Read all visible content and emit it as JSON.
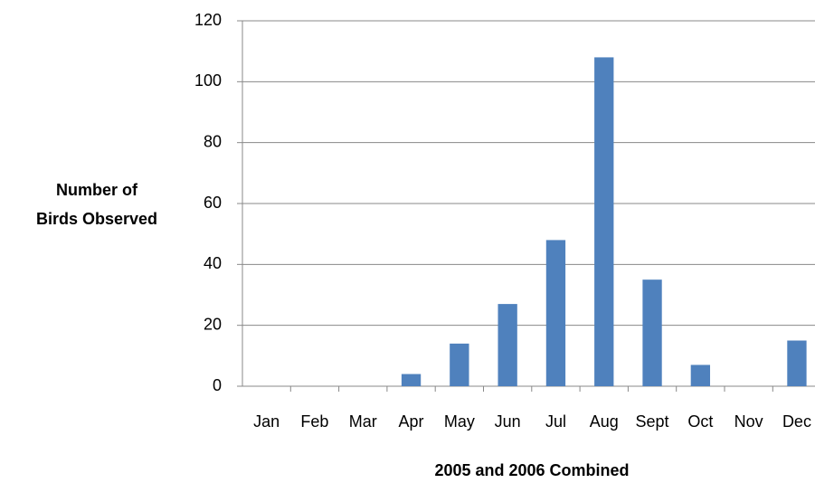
{
  "chart_data": {
    "type": "bar",
    "y_label": [
      "Number of",
      "Birds Observed"
    ],
    "x_label": "2005 and 2006 Combined",
    "categories": [
      "Jan",
      "Feb",
      "Mar",
      "Apr",
      "May",
      "Jun",
      "Jul",
      "Aug",
      "Sept",
      "Oct",
      "Nov",
      "Dec"
    ],
    "values": [
      0,
      0,
      0,
      4,
      14,
      27,
      48,
      108,
      35,
      7,
      0,
      15
    ],
    "color": "#4f81bd",
    "ylim": [
      0,
      120
    ],
    "yticks": [
      0,
      20,
      40,
      60,
      80,
      100,
      120
    ],
    "grid": true
  }
}
